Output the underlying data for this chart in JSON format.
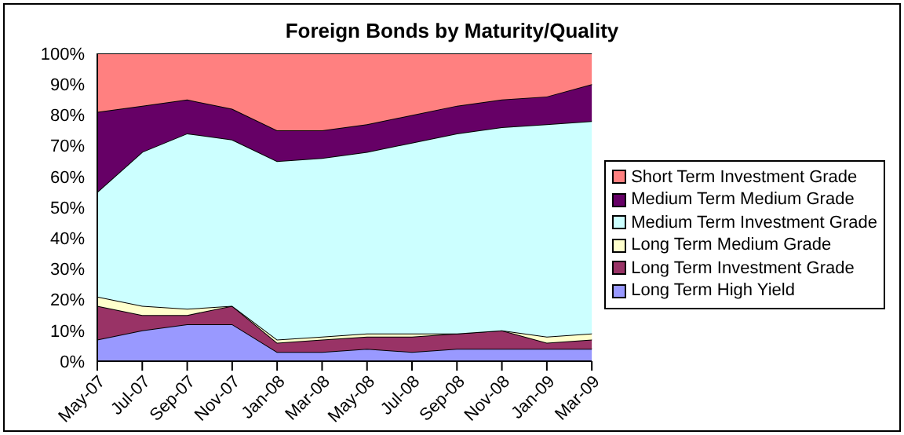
{
  "chart_data": {
    "type": "area",
    "stacked": true,
    "title": "Foreign Bonds by Maturity/Quality",
    "categories": [
      "May-07",
      "Jul-07",
      "Sep-07",
      "Nov-07",
      "Jan-08",
      "Mar-08",
      "May-08",
      "Jul-08",
      "Sep-08",
      "Nov-08",
      "Jan-09",
      "Mar-09"
    ],
    "series": [
      {
        "name": "Long Term High Yield",
        "color": "#9999ff",
        "values": [
          7,
          10,
          12,
          12,
          3,
          3,
          4,
          3,
          4,
          4,
          4,
          4
        ]
      },
      {
        "name": "Long Term Investment Grade",
        "color": "#993366",
        "values": [
          11,
          5,
          3,
          6,
          3,
          4,
          4,
          5,
          5,
          6,
          2,
          3
        ]
      },
      {
        "name": "Long Term Medium Grade",
        "color": "#ffffcc",
        "values": [
          3,
          3,
          2,
          0,
          1,
          1,
          1,
          1,
          0,
          0,
          2,
          2
        ]
      },
      {
        "name": "Medium Term Investment Grade",
        "color": "#ccffff",
        "values": [
          34,
          50,
          57,
          54,
          58,
          58,
          59,
          62,
          65,
          66,
          69,
          69
        ]
      },
      {
        "name": "Medium Term Medium Grade",
        "color": "#660066",
        "values": [
          26,
          15,
          11,
          10,
          10,
          9,
          9,
          9,
          9,
          9,
          9,
          12
        ]
      },
      {
        "name": "Short Term Investment Grade",
        "color": "#ff8080",
        "values": [
          19,
          17,
          15,
          18,
          25,
          25,
          23,
          20,
          17,
          15,
          14,
          10
        ]
      }
    ],
    "ylim": [
      0,
      100
    ],
    "yticks": [
      {
        "value": 0,
        "label": "0%"
      },
      {
        "value": 10,
        "label": "10%"
      },
      {
        "value": 20,
        "label": "20%"
      },
      {
        "value": 30,
        "label": "30%"
      },
      {
        "value": 40,
        "label": "40%"
      },
      {
        "value": 50,
        "label": "50%"
      },
      {
        "value": 60,
        "label": "60%"
      },
      {
        "value": 70,
        "label": "70%"
      },
      {
        "value": 80,
        "label": "80%"
      },
      {
        "value": 90,
        "label": "90%"
      },
      {
        "value": 100,
        "label": "100%"
      }
    ],
    "grid": false,
    "legend": "right"
  }
}
